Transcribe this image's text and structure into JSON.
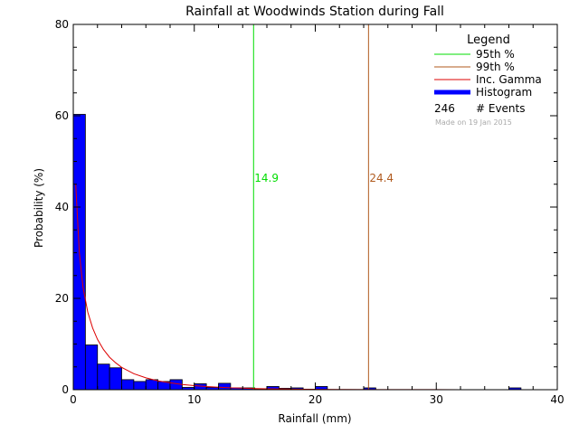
{
  "chart_data": {
    "type": "bar",
    "title": "Rainfall at Woodwinds Station during Fall",
    "xlabel": "Rainfall (mm)",
    "ylabel": "Probability (%)",
    "xlim": [
      0,
      40
    ],
    "ylim": [
      0,
      80
    ],
    "xticks": [
      0,
      10,
      20,
      30,
      40
    ],
    "yticks": [
      0,
      20,
      40,
      60,
      80
    ],
    "bin_width": 1,
    "histogram": [
      {
        "x0": 0,
        "value": 60.3
      },
      {
        "x0": 1,
        "value": 9.8
      },
      {
        "x0": 2,
        "value": 5.6
      },
      {
        "x0": 3,
        "value": 4.8
      },
      {
        "x0": 4,
        "value": 2.2
      },
      {
        "x0": 5,
        "value": 1.8
      },
      {
        "x0": 6,
        "value": 2.2
      },
      {
        "x0": 7,
        "value": 1.8
      },
      {
        "x0": 8,
        "value": 2.2
      },
      {
        "x0": 9,
        "value": 0.5
      },
      {
        "x0": 10,
        "value": 1.3
      },
      {
        "x0": 11,
        "value": 0.5
      },
      {
        "x0": 12,
        "value": 1.4
      },
      {
        "x0": 13,
        "value": 0.4
      },
      {
        "x0": 14,
        "value": 0.4
      },
      {
        "x0": 15,
        "value": 0.1
      },
      {
        "x0": 16,
        "value": 0.7
      },
      {
        "x0": 17,
        "value": 0.3
      },
      {
        "x0": 18,
        "value": 0.4
      },
      {
        "x0": 19,
        "value": 0.1
      },
      {
        "x0": 20,
        "value": 0.7
      },
      {
        "x0": 24,
        "value": 0.4
      },
      {
        "x0": 36,
        "value": 0.4
      }
    ],
    "gamma_curve": [
      [
        0.2,
        45
      ],
      [
        0.5,
        30
      ],
      [
        0.8,
        22.5
      ],
      [
        1.2,
        17
      ],
      [
        1.6,
        13.5
      ],
      [
        2,
        11
      ],
      [
        2.5,
        8.8
      ],
      [
        3,
        7.1
      ],
      [
        3.5,
        5.9
      ],
      [
        4,
        4.9
      ],
      [
        5,
        3.5
      ],
      [
        6,
        2.6
      ],
      [
        7,
        1.95
      ],
      [
        8,
        1.5
      ],
      [
        9,
        1.15
      ],
      [
        10,
        0.9
      ],
      [
        11,
        0.7
      ],
      [
        12,
        0.55
      ],
      [
        13,
        0.42
      ],
      [
        14,
        0.33
      ],
      [
        15,
        0.26
      ],
      [
        16,
        0.2
      ],
      [
        18,
        0.12
      ],
      [
        20,
        0.08
      ],
      [
        22,
        0.05
      ],
      [
        25,
        0.02
      ],
      [
        30,
        0.01
      ],
      [
        35,
        0.0
      ],
      [
        40,
        0.0
      ]
    ],
    "percentiles": [
      {
        "label": "14.9",
        "value": 14.9,
        "color": "#00dd00"
      },
      {
        "label": "24.4",
        "value": 24.4,
        "color": "#b05a1e"
      }
    ],
    "legend": {
      "title": "Legend",
      "placement": "top-right",
      "entries": [
        {
          "label": "95th %",
          "color": "#00dd00",
          "kind": "line"
        },
        {
          "label": "99th %",
          "color": "#b05a1e",
          "kind": "line"
        },
        {
          "label": "Inc. Gamma",
          "color": "#dd0000",
          "kind": "line"
        },
        {
          "label": "Histogram",
          "color": "#0000ff",
          "kind": "bar"
        }
      ],
      "events_count": "246",
      "events_label": "# Events",
      "made_on": "Made on 19 Jan 2015"
    },
    "colors": {
      "histogram_fill": "#0000ff",
      "histogram_edge": "#000000",
      "gamma": "#dd0000",
      "axis": "#000000",
      "made_on_text": "#aaaaaa"
    }
  }
}
